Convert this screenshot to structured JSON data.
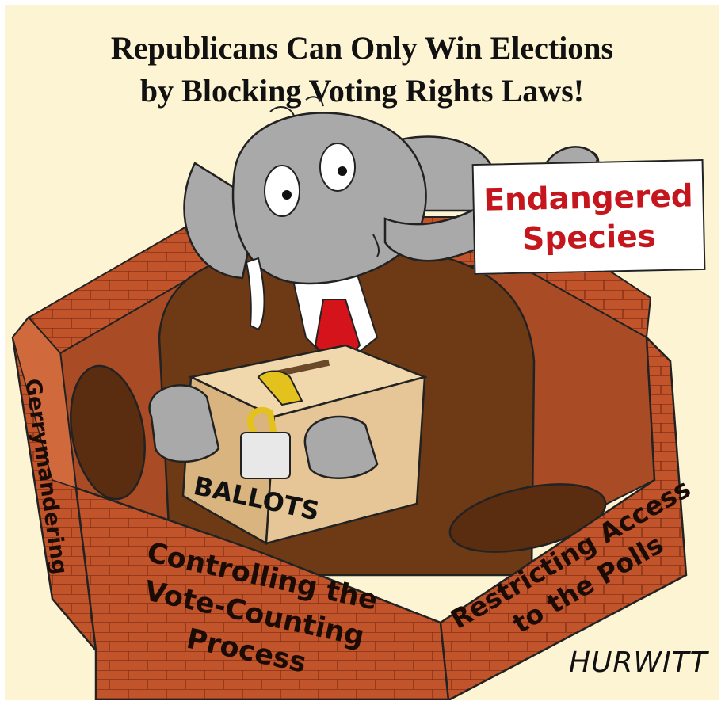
{
  "title": {
    "line1": "Republicans Can Only Win Elections",
    "line2": "by Blocking Voting Rights Laws!"
  },
  "sign": {
    "line1": "Endangered",
    "line2": "Species"
  },
  "box": {
    "label": "BALLOTS"
  },
  "walls": {
    "left": "Gerrymandering",
    "front_line1": "Controlling the",
    "front_line2": "Vote-Counting",
    "front_line3": "Process",
    "right_line1": "Restricting Access",
    "right_line2": "to the Polls"
  },
  "signature": "HURWITT",
  "colors": {
    "background": "#fdf4d4",
    "brick": "#c2542b",
    "brick_dark": "#a0401d",
    "elephant": "#a9a9a9",
    "suit": "#6e3a15",
    "tie": "#d4141a",
    "box": "#e6c596",
    "lock_gold": "#e4c21d",
    "sign_text": "#c4161c"
  }
}
